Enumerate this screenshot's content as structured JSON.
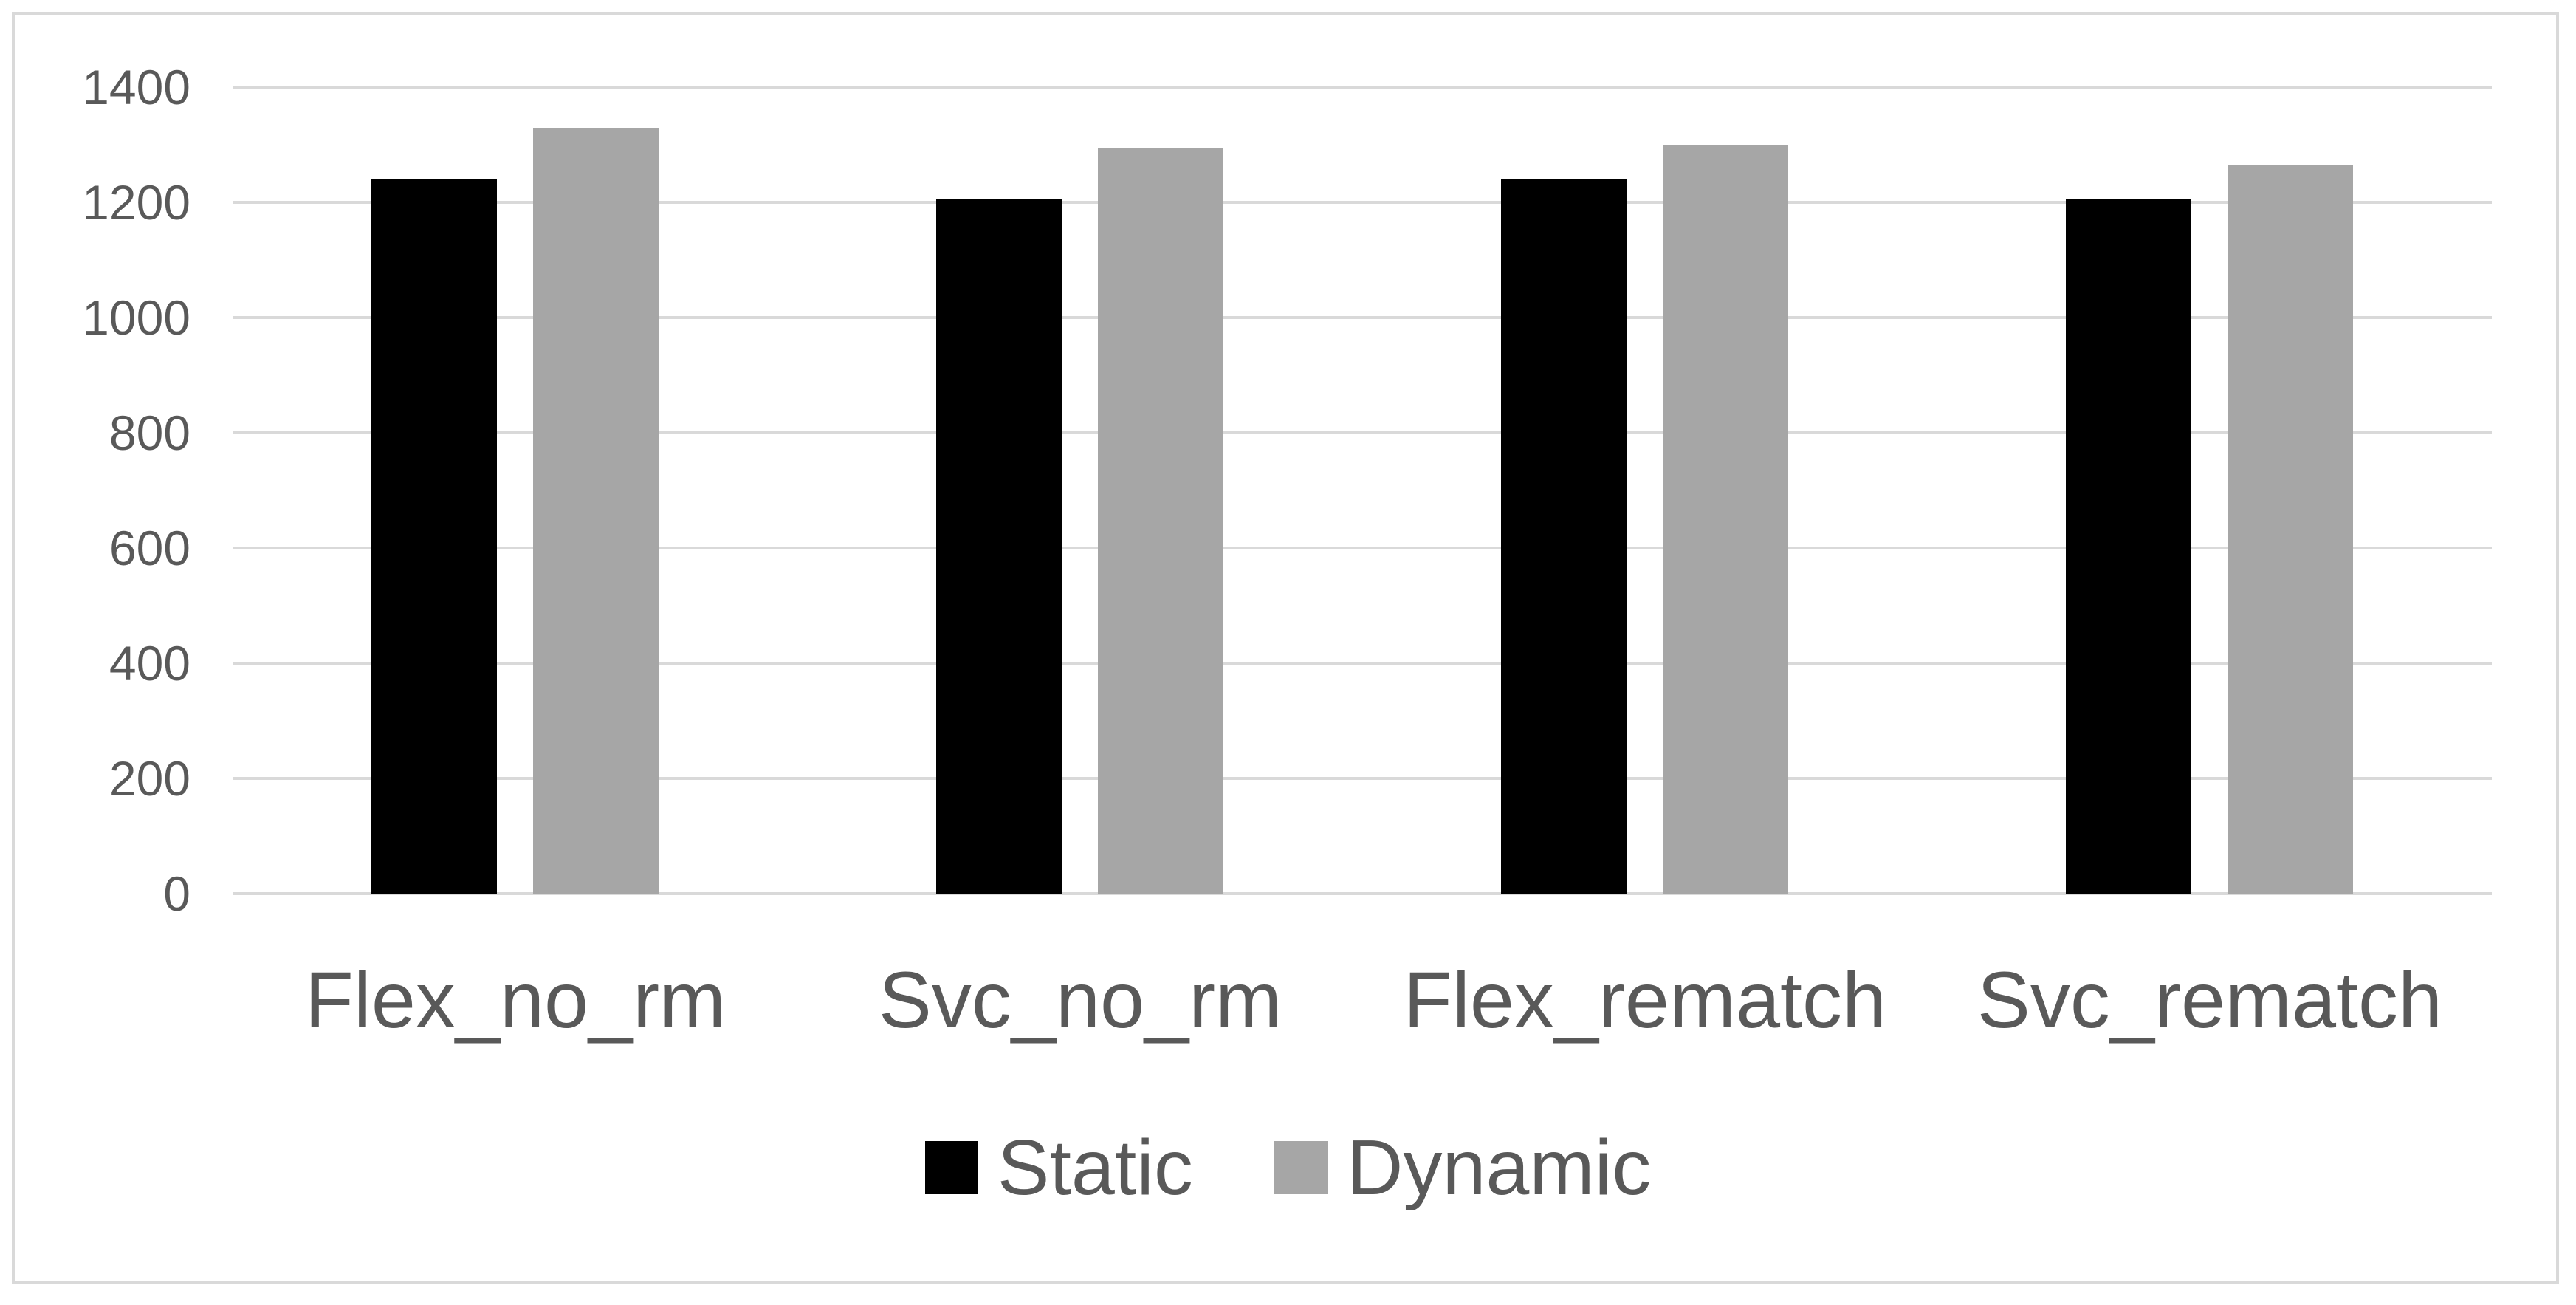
{
  "chart_data": {
    "type": "bar",
    "title": "",
    "xlabel": "",
    "ylabel": "",
    "categories": [
      "Flex_no_rm",
      "Svc_no_rm",
      "Flex_rematch",
      "Svc_rematch"
    ],
    "series": [
      {
        "name": "Static",
        "color": "#000000",
        "values": [
          1240,
          1205,
          1240,
          1205
        ]
      },
      {
        "name": "Dynamic",
        "color": "#a6a6a6",
        "values": [
          1330,
          1295,
          1300,
          1265
        ]
      }
    ],
    "ylim": [
      0,
      1400
    ],
    "yticks": [
      0,
      200,
      400,
      600,
      800,
      1000,
      1200,
      1400
    ],
    "grid": true,
    "legend_position": "bottom"
  },
  "colors": {
    "background": "#ffffff",
    "frame_border": "#d9d9d9",
    "gridline": "#d9d9d9",
    "axis_text": "#595959"
  }
}
